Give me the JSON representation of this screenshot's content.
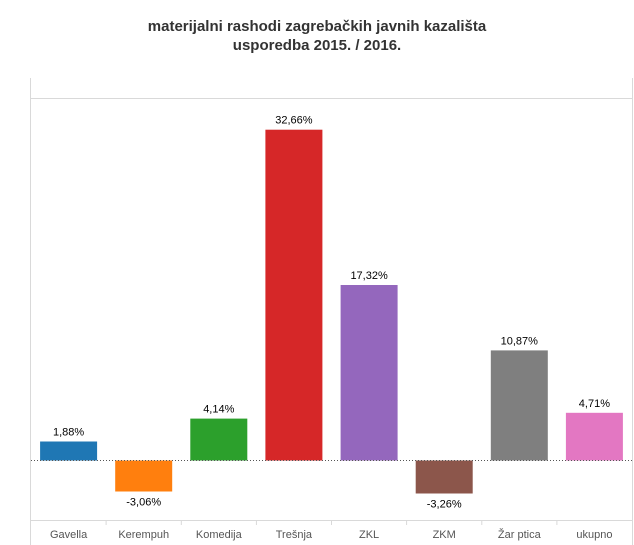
{
  "chart_data": {
    "type": "bar",
    "title": "materijalni rashodi zagrebačkih javnih kazališta",
    "subtitle": "usporedba 2015. / 2016.",
    "xlabel": "",
    "ylabel": "",
    "categories": [
      "Gavella",
      "Kerempuh",
      "Komedija",
      "Trešnja",
      "ZKL",
      "ZKM",
      "Žar ptica",
      "ukupno"
    ],
    "values": [
      1.88,
      -3.06,
      4.14,
      32.66,
      17.32,
      -3.26,
      10.87,
      4.71
    ],
    "value_labels": [
      "1,88%",
      "-3,06%",
      "4,14%",
      "32,66%",
      "17,32%",
      "-3,26%",
      "10,87%",
      "4,71%"
    ],
    "colors": [
      "#1f77b4",
      "#ff7f0e",
      "#2ca02c",
      "#d62728",
      "#9467bd",
      "#8c564b",
      "#7f7f7f",
      "#e377c2"
    ],
    "ylim": [
      -6.2,
      35.7
    ],
    "grid": false,
    "legend": "none",
    "zero_line": "dotted"
  }
}
